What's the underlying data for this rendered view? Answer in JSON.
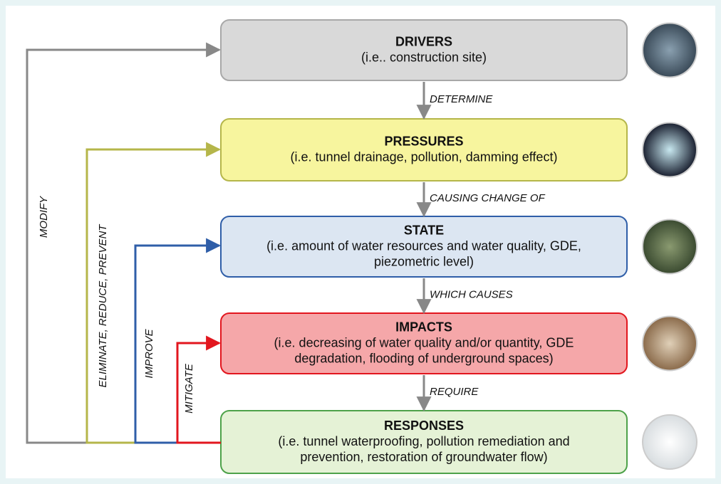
{
  "nodes": [
    {
      "title": "DRIVERS",
      "description": [
        "(i.e.. construction site)"
      ]
    },
    {
      "title": "PRESSURES",
      "description": [
        "(i.e. tunnel drainage, pollution, damming effect)"
      ]
    },
    {
      "title": "STATE",
      "description": [
        "(i.e. amount of water resources and water quality, GDE,",
        "piezometric level)"
      ]
    },
    {
      "title": "IMPACTS",
      "description": [
        "(i.e. decreasing of water quality and/or quantity, GDE",
        "degradation, flooding of underground spaces)"
      ]
    },
    {
      "title": "RESPONSES",
      "description": [
        "(i.e. tunnel waterproofing, pollution remediation and",
        "prevention, restoration of groundwater flow)"
      ]
    }
  ],
  "edges": [
    "DETERMINE",
    "CAUSING CHANGE OF",
    "WHICH CAUSES",
    "REQUIRE"
  ],
  "feedback": [
    "MODIFY",
    "ELIMINATE, REDUCE, PREVENT",
    "IMPROVE",
    "MITIGATE"
  ]
}
